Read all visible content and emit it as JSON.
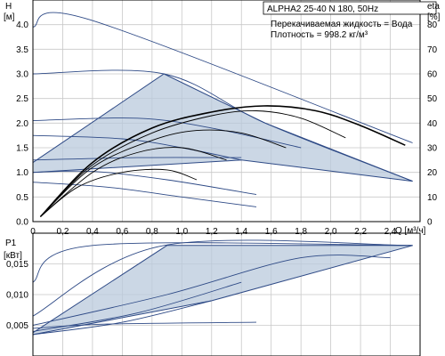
{
  "chart_data": [
    {
      "type": "line",
      "title": "ALPHA2 25-40 N 180, 50Hz",
      "info_lines": [
        "Перекачиваемая жидкость = Вода",
        "Плотность = 998.2 кг/м³"
      ],
      "xlabel": "Q [м³/ч]",
      "ylabel_left_symbol": "H",
      "ylabel_left_unit": "[м]",
      "ylabel_right_symbol": "eta",
      "ylabel_right_unit": "[%]",
      "xlim": [
        0,
        2.6
      ],
      "ylim": [
        0,
        4.5
      ],
      "ylim_right": [
        0,
        90
      ],
      "grid": true,
      "x_ticks": [
        "0",
        "0,2",
        "0,4",
        "0,6",
        "0,8",
        "1,0",
        "1,2",
        "1,4",
        "1,6",
        "1,8",
        "2,0",
        "2,2",
        "2,4"
      ],
      "y_ticks": [
        "0.0",
        "0.5",
        "1.0",
        "1.5",
        "2.0",
        "2.5",
        "3.0",
        "3.5",
        "4.0"
      ],
      "y_ticks_right": [
        "0",
        "10",
        "20",
        "30",
        "40",
        "50",
        "60",
        "70",
        "80"
      ],
      "colors": {
        "curve": "#2e4a86",
        "region_fill": "#b9c9dc",
        "region_stroke": "#2e4a86",
        "efficiency": "#000000"
      },
      "operating_region": [
        [
          0,
          1.2
        ],
        [
          0.88,
          3.0
        ],
        [
          1.56,
          2.0
        ],
        [
          2.55,
          0.82
        ],
        [
          1.4,
          1.25
        ],
        [
          0,
          1.0
        ]
      ],
      "head_curves": [
        {
          "x": [
            0,
            0.38,
            2.55
          ],
          "y": [
            3.95,
            4.1,
            1.6
          ]
        },
        {
          "x": [
            0,
            0.88,
            1.56,
            2.55
          ],
          "y": [
            3.0,
            3.0,
            2.0,
            0.82
          ]
        },
        {
          "x": [
            0,
            0.7,
            1.2,
            1.8
          ],
          "y": [
            2.05,
            2.1,
            1.9,
            1.5
          ]
        },
        {
          "x": [
            0,
            0.6,
            1.0,
            1.4
          ],
          "y": [
            1.75,
            1.68,
            1.5,
            1.25
          ]
        },
        {
          "x": [
            0,
            0.4,
            0.9,
            1.5
          ],
          "y": [
            1.0,
            1.02,
            0.85,
            0.55
          ]
        },
        {
          "x": [
            0,
            0.5,
            1.0,
            1.5
          ],
          "y": [
            0.8,
            0.7,
            0.5,
            0.3
          ]
        },
        {
          "x": [
            0,
            0.7,
            1.4
          ],
          "y": [
            1.25,
            1.3,
            1.3
          ]
        }
      ],
      "efficiency_curves": [
        {
          "x": [
            0.05,
            0.4,
            0.8,
            1.2,
            1.55,
            1.9,
            2.2,
            2.5
          ],
          "y": [
            2,
            24,
            38,
            44.5,
            47,
            45,
            39,
            31
          ]
        },
        {
          "x": [
            0.05,
            0.4,
            0.8,
            1.2,
            1.5,
            1.8,
            2.1
          ],
          "y": [
            2,
            23,
            36,
            43,
            45,
            42,
            34
          ]
        },
        {
          "x": [
            0.05,
            0.4,
            0.8,
            1.1,
            1.4,
            1.7
          ],
          "y": [
            2,
            22,
            33,
            37,
            36,
            30
          ]
        },
        {
          "x": [
            0.05,
            0.4,
            0.7,
            1.0,
            1.3
          ],
          "y": [
            2,
            20,
            28,
            30,
            25
          ]
        },
        {
          "x": [
            0.05,
            0.3,
            0.6,
            0.9,
            1.1
          ],
          "y": [
            2,
            14,
            20,
            21,
            17
          ]
        }
      ]
    },
    {
      "type": "line",
      "ylabel_symbol": "P1",
      "ylabel_unit": "[кВт]",
      "xlim": [
        0,
        2.6
      ],
      "ylim": [
        0,
        0.02
      ],
      "grid": true,
      "y_ticks": [
        "0,005",
        "0,010",
        "0,015"
      ],
      "operating_region": [
        [
          0,
          0.0038
        ],
        [
          0.9,
          0.018
        ],
        [
          2.55,
          0.018
        ],
        [
          1.2,
          0.009
        ],
        [
          0,
          0.0035
        ]
      ],
      "power_curves": [
        {
          "x": [
            0,
            0.4,
            2.55
          ],
          "y": [
            0.012,
            0.018,
            0.018
          ]
        },
        {
          "x": [
            0,
            0.88,
            2.55
          ],
          "y": [
            0.0065,
            0.018,
            0.018
          ]
        },
        {
          "x": [
            0,
            0.9,
            1.8,
            2.4
          ],
          "y": [
            0.005,
            0.01,
            0.016,
            0.016
          ]
        },
        {
          "x": [
            0,
            0.7,
            1.4
          ],
          "y": [
            0.004,
            0.007,
            0.012
          ]
        },
        {
          "x": [
            0,
            0.6,
            1.2
          ],
          "y": [
            0.0035,
            0.0055,
            0.009
          ]
        },
        {
          "x": [
            0,
            0.5,
            1.5
          ],
          "y": [
            0.0045,
            0.0052,
            0.0055
          ]
        }
      ]
    }
  ]
}
